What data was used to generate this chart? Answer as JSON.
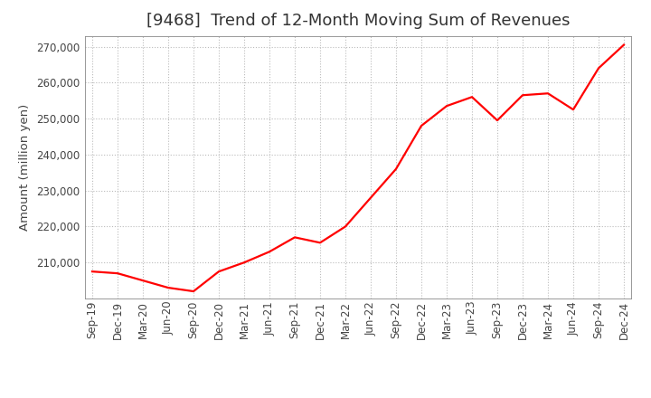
{
  "title": "[9468]  Trend of 12-Month Moving Sum of Revenues",
  "ylabel": "Amount (million yen)",
  "line_color": "#FF0000",
  "background_color": "#FFFFFF",
  "grid_color": "#BBBBBB",
  "xlabels": [
    "Sep-19",
    "Dec-19",
    "Mar-20",
    "Jun-20",
    "Sep-20",
    "Dec-20",
    "Mar-21",
    "Jun-21",
    "Sep-21",
    "Dec-21",
    "Mar-22",
    "Jun-22",
    "Sep-22",
    "Dec-22",
    "Mar-23",
    "Jun-23",
    "Sep-23",
    "Dec-23",
    "Mar-24",
    "Jun-24",
    "Sep-24",
    "Dec-24"
  ],
  "values": [
    207500,
    207000,
    205000,
    203000,
    202000,
    207500,
    210000,
    213000,
    217000,
    215500,
    220000,
    228000,
    236000,
    248000,
    253500,
    256000,
    249500,
    256500,
    257000,
    252500,
    264000,
    270500
  ],
  "ylim": [
    200000,
    273000
  ],
  "yticks": [
    210000,
    220000,
    230000,
    240000,
    250000,
    260000,
    270000
  ],
  "title_fontsize": 13,
  "tick_fontsize": 8.5,
  "ylabel_fontsize": 9.5,
  "title_color": "#333333",
  "tick_color": "#444444",
  "line_width": 1.6
}
